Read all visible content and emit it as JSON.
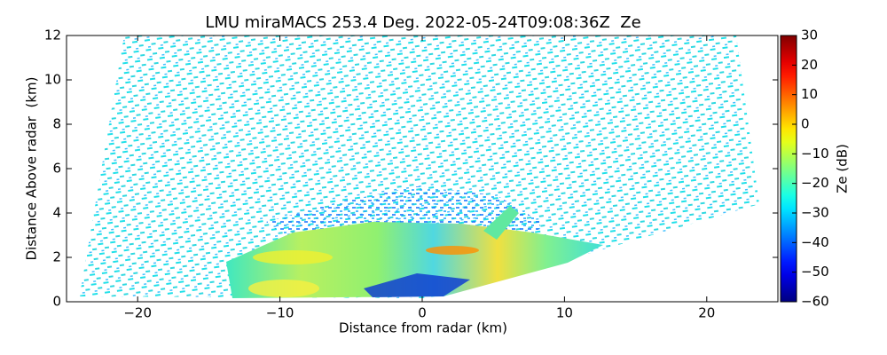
{
  "chart_data": {
    "type": "heatmap",
    "title": "LMU miraMACS 253.4 Deg. 2022-05-24T09:08:36Z  Ze",
    "x_label": "Distance from radar (km)",
    "y_label": "Distance Above radar  (km)",
    "colorbar_label": "Ze (dB)",
    "colormap": "jet",
    "xlim": [
      -25,
      25
    ],
    "ylim": [
      0,
      12
    ],
    "xticks": [
      {
        "value": -20,
        "label": "−20"
      },
      {
        "value": -10,
        "label": "−10"
      },
      0,
      10,
      20
    ],
    "yticks": [
      0,
      2,
      4,
      6,
      8,
      10,
      12
    ],
    "clim": [
      -60,
      30
    ],
    "cticks": [
      {
        "value": -60,
        "label": "−60"
      },
      {
        "value": -50,
        "label": "−50"
      },
      {
        "value": -40,
        "label": "−40"
      },
      {
        "value": -30,
        "label": "−30"
      },
      {
        "value": -20,
        "label": "−20"
      },
      {
        "value": -10,
        "label": "−10"
      },
      0,
      10,
      20,
      30
    ]
  }
}
